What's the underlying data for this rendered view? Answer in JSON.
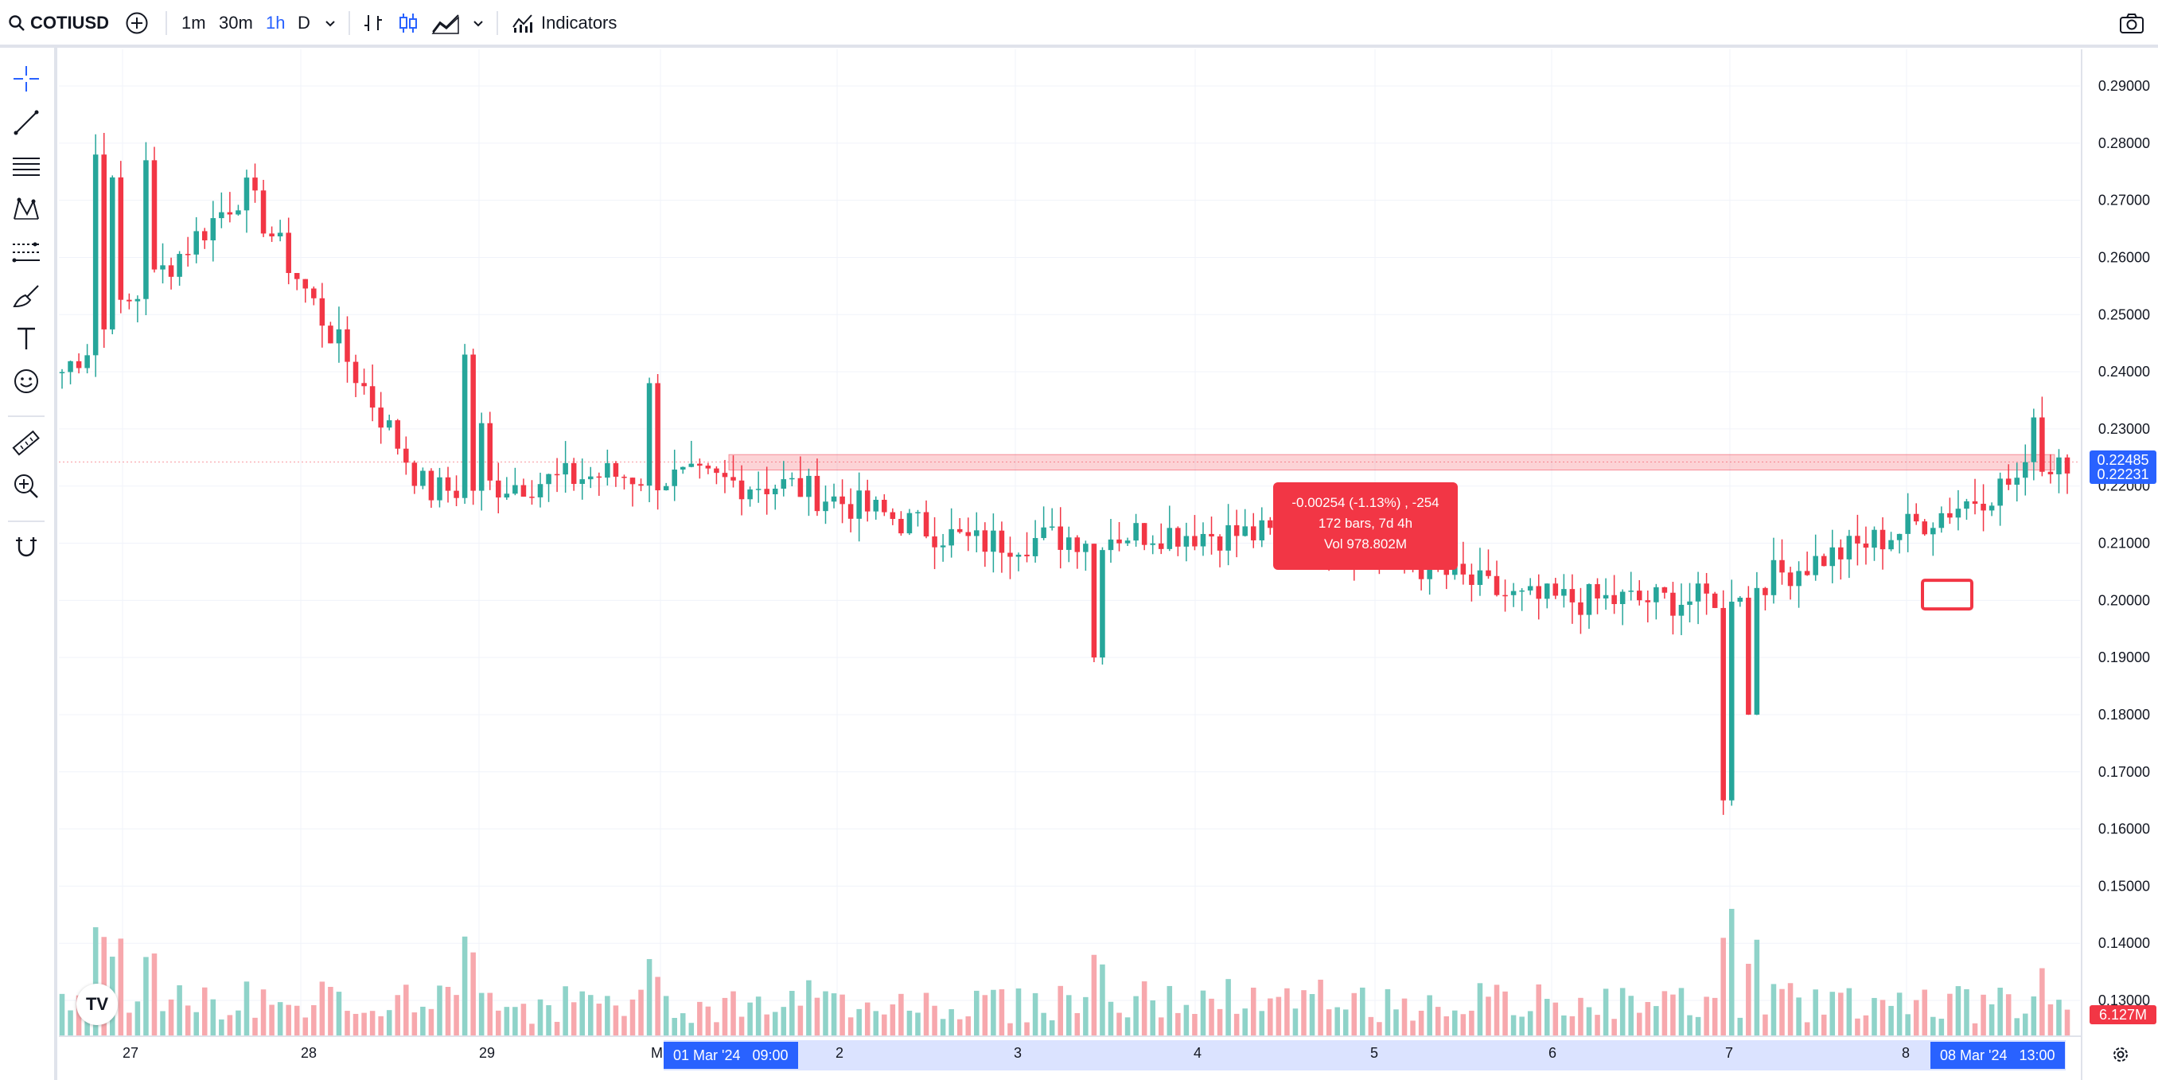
{
  "toolbar": {
    "symbol": "COTIUSD",
    "timeframes": [
      {
        "label": "1m",
        "active": false
      },
      {
        "label": "30m",
        "active": false
      },
      {
        "label": "1h",
        "active": true
      },
      {
        "label": "D",
        "active": false
      }
    ],
    "indicators_label": "Indicators",
    "icons": [
      "search-icon",
      "add-symbol-icon",
      "chevron-down-icon",
      "bar-chart-icon",
      "candle-chart-icon",
      "area-chart-icon",
      "indicators-icon",
      "camera-icon"
    ]
  },
  "left_tools": [
    "crosshair-icon",
    "trend-line-icon",
    "horizontal-lines-icon",
    "pattern-icon",
    "fib-icon",
    "brush-icon",
    "text-icon",
    "emoji-icon",
    "ruler-icon",
    "zoom-icon",
    "magnet-icon"
  ],
  "price_axis": {
    "labels": [
      "0.29000",
      "0.28000",
      "0.27000",
      "0.26000",
      "0.25000",
      "0.24000",
      "0.23000",
      "0.22000",
      "0.21000",
      "0.20000",
      "0.19000",
      "0.18000",
      "0.17000",
      "0.16000",
      "0.15000",
      "0.14000",
      "0.13000"
    ],
    "current_price": "0.22485",
    "second_price": "0.22231",
    "volume_label": "6.127M"
  },
  "time_axis": {
    "labels": [
      "27",
      "28",
      "29",
      "M",
      "2",
      "3",
      "4",
      "5",
      "6",
      "7",
      "8"
    ],
    "range_start": "01 Mar '24",
    "range_start_time": "09:00",
    "range_end": "08 Mar '24",
    "range_end_time": "13:00"
  },
  "measure_tooltip": {
    "line1": "-0.00254 (-1.13%) , -254",
    "line2": "172 bars, 7d 4h",
    "line3": "Vol 978.802M"
  },
  "colors": {
    "up": "#26a69a",
    "down": "#f23645",
    "accent": "#2962ff",
    "up_volume": "#8fd3c9",
    "down_volume": "#f7a8ad"
  },
  "chart_data": {
    "type": "candlestick",
    "symbol": "COTIUSD",
    "interval": "1h",
    "ylim": [
      0.13,
      0.29
    ],
    "x_range": [
      "26 Feb '24",
      "08 Mar '24 13:00"
    ],
    "highlight_zone": {
      "low": 0.2228,
      "high": 0.2255
    },
    "measure": {
      "start": "01 Mar '24 09:00",
      "end": "08 Mar '24 13:00",
      "change": -0.00254,
      "change_pct": -1.13,
      "bars": 172,
      "volume": "978.802M"
    },
    "key_points": [
      {
        "t": "26 Feb",
        "close": 0.24
      },
      {
        "t": "27 Feb",
        "high": 0.279,
        "close": 0.272
      },
      {
        "t": "28 Feb",
        "close": 0.219
      },
      {
        "t": "29 Feb",
        "high": 0.243,
        "close": 0.222
      },
      {
        "t": "01 Mar",
        "close": 0.22
      },
      {
        "t": "02 Mar",
        "close": 0.21
      },
      {
        "t": "03 Mar",
        "low": 0.188,
        "close": 0.212
      },
      {
        "t": "04 Mar",
        "close": 0.211
      },
      {
        "t": "05 Mar",
        "close": 0.2
      },
      {
        "t": "06 Mar",
        "low": 0.163,
        "close": 0.2
      },
      {
        "t": "07 Mar",
        "close": 0.211
      },
      {
        "t": "08 Mar",
        "low": 0.2,
        "high": 0.235,
        "close": 0.225
      }
    ]
  }
}
